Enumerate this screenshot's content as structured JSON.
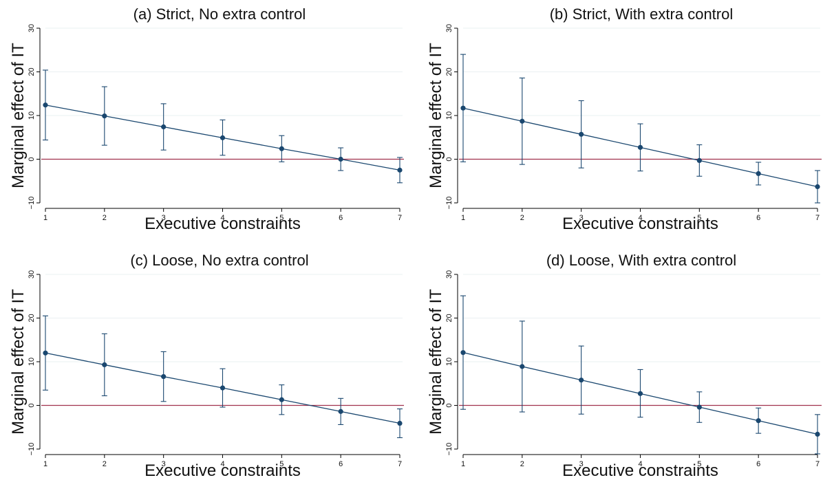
{
  "colors": {
    "series": "#1a476f",
    "reference_line": "#a0314d",
    "grid": "#eaf0f2",
    "axis": "#000000"
  },
  "chart_data": [
    {
      "type": "line",
      "panel": "a",
      "title": "(a) Strict, No extra control",
      "xlabel": "Executive constraints",
      "ylabel": "Marginal effect of IT",
      "x": [
        1,
        2,
        3,
        4,
        5,
        6,
        7
      ],
      "x_tick_labels": [
        "1",
        "2",
        "3",
        "4",
        "5",
        "6",
        "7"
      ],
      "y_ticks": [
        -10,
        0,
        10,
        20,
        30
      ],
      "y_tick_labels": [
        "−10",
        "0",
        "10",
        "20",
        "30"
      ],
      "ylim": [
        -10,
        30
      ],
      "grid": true,
      "reference_line_y": 0,
      "series": [
        {
          "values": [
            12.4,
            9.9,
            7.4,
            4.9,
            2.4,
            0.0,
            -2.5
          ],
          "ci_low": [
            4.4,
            3.2,
            2.1,
            0.9,
            -0.6,
            -2.6,
            -5.4
          ],
          "ci_high": [
            20.4,
            16.6,
            12.7,
            9.0,
            5.4,
            2.6,
            0.4
          ]
        }
      ]
    },
    {
      "type": "line",
      "panel": "b",
      "title": "(b) Strict, With extra control",
      "xlabel": "Executive constraints",
      "ylabel": "Marginal effect of IT",
      "x": [
        1,
        2,
        3,
        4,
        5,
        6,
        7
      ],
      "x_tick_labels": [
        "1",
        "2",
        "3",
        "4",
        "5",
        "6",
        "7"
      ],
      "y_ticks": [
        -10,
        0,
        10,
        20,
        30
      ],
      "y_tick_labels": [
        "−10",
        "0",
        "10",
        "20",
        "30"
      ],
      "ylim": [
        -10,
        30
      ],
      "grid": true,
      "reference_line_y": 0,
      "series": [
        {
          "values": [
            11.7,
            8.7,
            5.7,
            2.7,
            -0.3,
            -3.3,
            -6.3
          ],
          "ci_low": [
            -0.6,
            -1.2,
            -2.0,
            -2.7,
            -3.9,
            -5.9,
            -10.0
          ],
          "ci_high": [
            24.0,
            18.6,
            13.4,
            8.1,
            3.3,
            -0.7,
            -2.6
          ]
        }
      ]
    },
    {
      "type": "line",
      "panel": "c",
      "title": "(c) Loose, No extra control",
      "xlabel": "Executive constraints",
      "ylabel": "Marginal effect of IT",
      "x": [
        1,
        2,
        3,
        4,
        5,
        6,
        7
      ],
      "x_tick_labels": [
        "1",
        "2",
        "3",
        "4",
        "5",
        "6",
        "7"
      ],
      "y_ticks": [
        -10,
        0,
        10,
        20,
        30
      ],
      "y_tick_labels": [
        "−10",
        "0",
        "10",
        "20",
        "30"
      ],
      "ylim": [
        -10,
        30
      ],
      "grid": true,
      "reference_line_y": 0,
      "series": [
        {
          "values": [
            12.0,
            9.3,
            6.6,
            4.0,
            1.3,
            -1.4,
            -4.1
          ],
          "ci_low": [
            3.5,
            2.2,
            0.9,
            -0.4,
            -2.1,
            -4.4,
            -7.4
          ],
          "ci_high": [
            20.5,
            16.4,
            12.3,
            8.4,
            4.7,
            1.6,
            -0.8
          ]
        }
      ]
    },
    {
      "type": "line",
      "panel": "d",
      "title": "(d) Loose, With extra control",
      "xlabel": "Executive constraints",
      "ylabel": "Marginal effect of IT",
      "x": [
        1,
        2,
        3,
        4,
        5,
        6,
        7
      ],
      "x_tick_labels": [
        "1",
        "2",
        "3",
        "4",
        "5",
        "6",
        "7"
      ],
      "y_ticks": [
        -10,
        0,
        10,
        20,
        30
      ],
      "y_tick_labels": [
        "−10",
        "0",
        "10",
        "20",
        "30"
      ],
      "ylim": [
        -10,
        30
      ],
      "grid": true,
      "reference_line_y": 0,
      "series": [
        {
          "values": [
            12.1,
            8.9,
            5.8,
            2.7,
            -0.4,
            -3.5,
            -6.6
          ],
          "ci_low": [
            -0.9,
            -1.5,
            -2.0,
            -2.7,
            -3.9,
            -6.4,
            -11.1
          ],
          "ci_high": [
            25.1,
            19.3,
            13.6,
            8.2,
            3.1,
            -0.6,
            -2.1
          ]
        }
      ]
    }
  ]
}
